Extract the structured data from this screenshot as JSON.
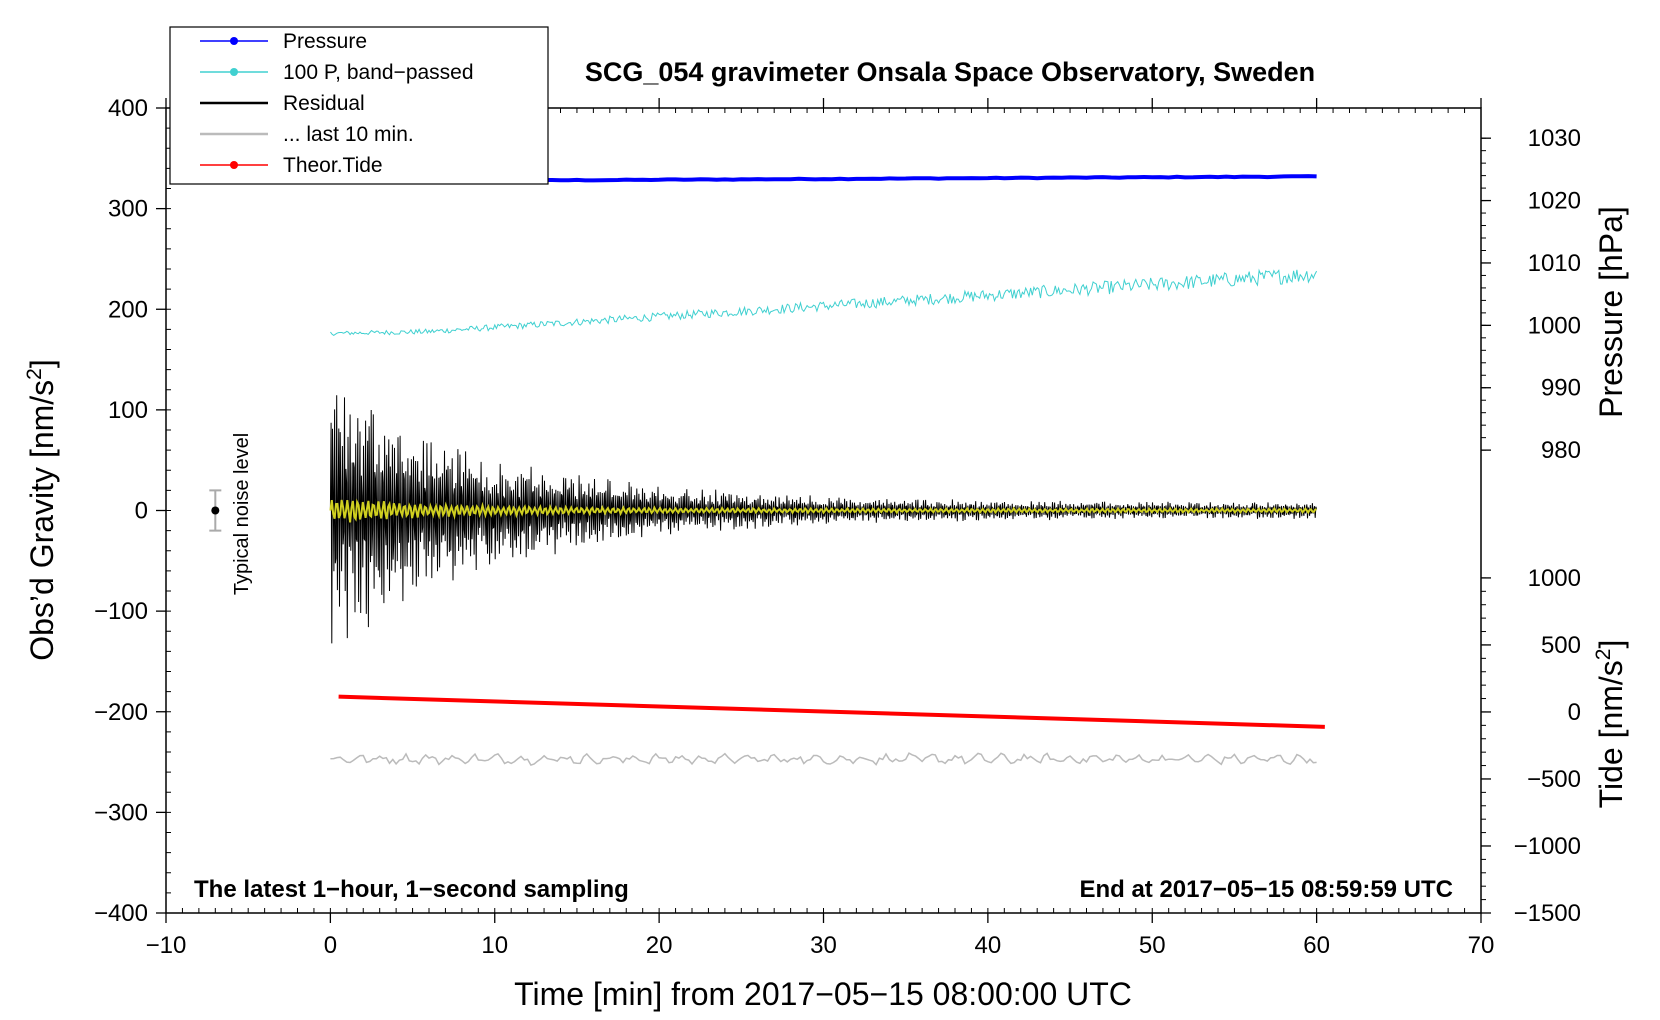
{
  "chart_data": {
    "type": "line",
    "title": "SCG_054 gravimeter Onsala Space Observatory, Sweden",
    "xlabel": "Time [min] from 2017−05−15 08:00:00 UTC",
    "ylabel_left": "Obs’d Gravity [nm/s",
    "ylabel_left_sup": "2",
    "ylabel_left_end": "]",
    "ylabel_right_top": "Pressure [hPa]",
    "ylabel_right_bottom": "Tide [nm/s",
    "ylabel_right_bottom_sup": "2",
    "ylabel_right_bottom_end": "]",
    "xlim": [
      -10,
      70
    ],
    "ylim": [
      -400,
      400
    ],
    "x_ticks": [
      -10,
      0,
      10,
      20,
      30,
      40,
      50,
      60,
      70
    ],
    "x_tick_labels": [
      "−10",
      "0",
      "10",
      "20",
      "30",
      "40",
      "50",
      "60",
      "70"
    ],
    "y_ticks": [
      -400,
      -300,
      -200,
      -100,
      0,
      100,
      200,
      300,
      400
    ],
    "y_tick_labels": [
      "−400",
      "−300",
      "−200",
      "−100",
      "0",
      "100",
      "200",
      "300",
      "400"
    ],
    "pressure_axis": {
      "ticks": [
        980,
        990,
        1000,
        1010,
        1020,
        1030
      ],
      "tick_labels": [
        "980",
        "990",
        "1000",
        "1010",
        "1020",
        "1030"
      ],
      "range_on_left_axis": {
        "p980": 60,
        "p1030": 370
      }
    },
    "tide_axis": {
      "ticks": [
        -1500,
        -1000,
        -500,
        0,
        500,
        1000
      ],
      "tick_labels": [
        "−1500",
        "−1000",
        "−500",
        "0",
        "500",
        "1000"
      ],
      "range_on_left_axis": {
        "t_minus1500": -400,
        "t1000": -67
      }
    },
    "series": [
      {
        "name": "Pressure",
        "color": "#0000ff",
        "style": "line-dot",
        "x_start": 0,
        "x_end": 60,
        "y_start": 327,
        "y_end": 332
      },
      {
        "name": "100 P, band−passed",
        "color": "#40d0d0",
        "style": "line-dot",
        "x_start": 0,
        "x_end": 60,
        "y_start": 176,
        "y_end": 235
      },
      {
        "name": "Residual",
        "color": "#000000",
        "style": "line",
        "x_start": 0,
        "x_end": 60,
        "initial_amplitude": 150,
        "final_amplitude": 8,
        "center": 0
      },
      {
        "name": "... last 10 min.",
        "color": "#bbbbbb",
        "style": "line",
        "x_start": 0,
        "x_end": 60,
        "y_level": -247
      },
      {
        "name": "Theor.Tide",
        "color": "#ff0000",
        "style": "line-dot",
        "x_start": 0.5,
        "x_end": 60.5,
        "y_start": -185,
        "y_end": -215
      }
    ],
    "smoothed_residual_color": "#d0d020",
    "noise_level": {
      "x": -7,
      "center": 0,
      "half_range": 20,
      "label": "Typical noise level"
    },
    "annotations": {
      "bottom_left": "The latest 1−hour, 1−second sampling",
      "bottom_right": "End at 2017−05−15 08:59:59 UTC"
    },
    "legend_position": "top-left"
  }
}
